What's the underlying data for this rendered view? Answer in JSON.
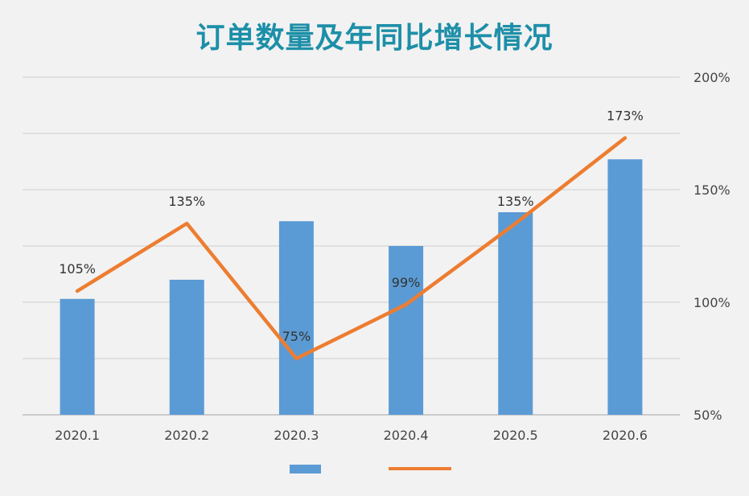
{
  "chart_data": {
    "type": "bar",
    "title": "订单数量及年同比增长情况",
    "categories": [
      "2020.1",
      "2020.2",
      "2020.3",
      "2020.4",
      "2020.5",
      "2020.6"
    ],
    "series": [
      {
        "type": "bar",
        "axis": "left",
        "values": [
          101.5,
          110,
          136,
          125,
          140,
          163.5
        ],
        "color": "#5b9bd5"
      },
      {
        "type": "line",
        "axis": "right",
        "values": [
          105,
          135,
          75,
          99,
          135,
          173
        ],
        "data_labels": [
          "105%",
          "135%",
          "75%",
          "99%",
          "135%",
          "173%"
        ],
        "color": "#ed7d31"
      }
    ],
    "right_axis": {
      "ylim": [
        50,
        200
      ],
      "ticks": [
        "200%",
        "150%",
        "100%",
        "50%"
      ],
      "tick_values": [
        200,
        150,
        100,
        50
      ]
    },
    "left_axis": {
      "ylim": [
        50,
        200
      ],
      "labels_shown": false
    },
    "grid": true,
    "legend": {
      "placement": "bottom"
    }
  }
}
